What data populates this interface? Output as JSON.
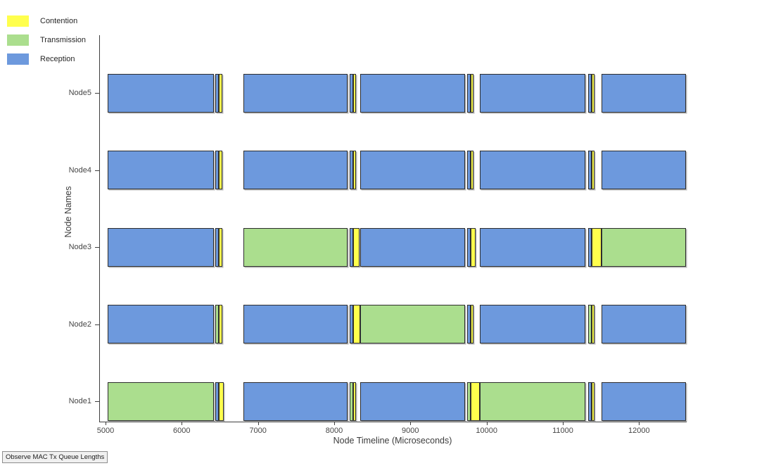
{
  "button": {
    "label": "Observe MAC Tx Queue Lengths"
  },
  "chart_data": {
    "type": "timeline",
    "title": "",
    "xlabel": "Node Timeline (Microseconds)",
    "ylabel": "Node Names",
    "xlim": [
      4925,
      12615
    ],
    "xticks": [
      5000,
      6000,
      7000,
      8000,
      9000,
      10000,
      11000,
      12000
    ],
    "categories": [
      "Node1",
      "Node2",
      "Node3",
      "Node4",
      "Node5"
    ],
    "grid": false,
    "legend_position": "top-left-outside",
    "legend": [
      {
        "label": "Contention",
        "type": "contention",
        "color": "#FFFF4D"
      },
      {
        "label": "Transmission",
        "type": "transmission",
        "color": "#ABDE8E"
      },
      {
        "label": "Reception",
        "type": "reception",
        "color": "#6D99DD"
      }
    ],
    "nodes": [
      {
        "name": "Node5",
        "segments": [
          [
            "reception",
            5030,
            6420
          ],
          [
            "reception",
            6440,
            6490
          ],
          [
            "contention",
            6490,
            6535
          ],
          [
            "reception",
            6805,
            8175
          ],
          [
            "reception",
            8200,
            8250
          ],
          [
            "contention",
            8250,
            8285
          ],
          [
            "reception",
            8340,
            9720
          ],
          [
            "reception",
            9740,
            9790
          ],
          [
            "contention",
            9790,
            9830
          ],
          [
            "reception",
            9910,
            11300
          ],
          [
            "reception",
            11330,
            11380
          ],
          [
            "contention",
            11380,
            11415
          ],
          [
            "reception",
            11510,
            12615
          ]
        ]
      },
      {
        "name": "Node4",
        "segments": [
          [
            "reception",
            5030,
            6420
          ],
          [
            "reception",
            6440,
            6490
          ],
          [
            "contention",
            6490,
            6535
          ],
          [
            "reception",
            6805,
            8175
          ],
          [
            "reception",
            8200,
            8250
          ],
          [
            "contention",
            8250,
            8285
          ],
          [
            "reception",
            8340,
            9720
          ],
          [
            "reception",
            9740,
            9790
          ],
          [
            "contention",
            9790,
            9830
          ],
          [
            "reception",
            9910,
            11300
          ],
          [
            "reception",
            11330,
            11380
          ],
          [
            "contention",
            11380,
            11415
          ],
          [
            "reception",
            11510,
            12615
          ]
        ]
      },
      {
        "name": "Node3",
        "segments": [
          [
            "reception",
            5030,
            6420
          ],
          [
            "reception",
            6440,
            6490
          ],
          [
            "contention",
            6490,
            6535
          ],
          [
            "transmission",
            6805,
            8175
          ],
          [
            "reception",
            8200,
            8250
          ],
          [
            "contention",
            8250,
            8335
          ],
          [
            "reception",
            8340,
            9720
          ],
          [
            "reception",
            9740,
            9790
          ],
          [
            "contention",
            9790,
            9855
          ],
          [
            "reception",
            9910,
            11300
          ],
          [
            "reception",
            11330,
            11380
          ],
          [
            "contention",
            11380,
            11510
          ],
          [
            "transmission",
            11510,
            12615
          ]
        ]
      },
      {
        "name": "Node2",
        "segments": [
          [
            "reception",
            5030,
            6420
          ],
          [
            "transmission",
            6440,
            6490
          ],
          [
            "contention",
            6490,
            6535
          ],
          [
            "reception",
            6805,
            8175
          ],
          [
            "reception",
            8200,
            8250
          ],
          [
            "contention",
            8250,
            8340
          ],
          [
            "transmission",
            8340,
            9720
          ],
          [
            "reception",
            9740,
            9790
          ],
          [
            "contention",
            9790,
            9830
          ],
          [
            "reception",
            9910,
            11300
          ],
          [
            "transmission",
            11330,
            11380
          ],
          [
            "contention",
            11380,
            11415
          ],
          [
            "reception",
            11510,
            12615
          ]
        ]
      },
      {
        "name": "Node1",
        "segments": [
          [
            "transmission",
            5030,
            6420
          ],
          [
            "reception",
            6440,
            6490
          ],
          [
            "contention",
            6490,
            6550
          ],
          [
            "reception",
            6805,
            8175
          ],
          [
            "transmission",
            8200,
            8250
          ],
          [
            "contention",
            8250,
            8285
          ],
          [
            "reception",
            8340,
            9720
          ],
          [
            "transmission",
            9740,
            9790
          ],
          [
            "contention",
            9790,
            9910
          ],
          [
            "transmission",
            9910,
            11300
          ],
          [
            "reception",
            11330,
            11380
          ],
          [
            "contention",
            11380,
            11415
          ],
          [
            "reception",
            11510,
            12615
          ]
        ]
      }
    ]
  }
}
